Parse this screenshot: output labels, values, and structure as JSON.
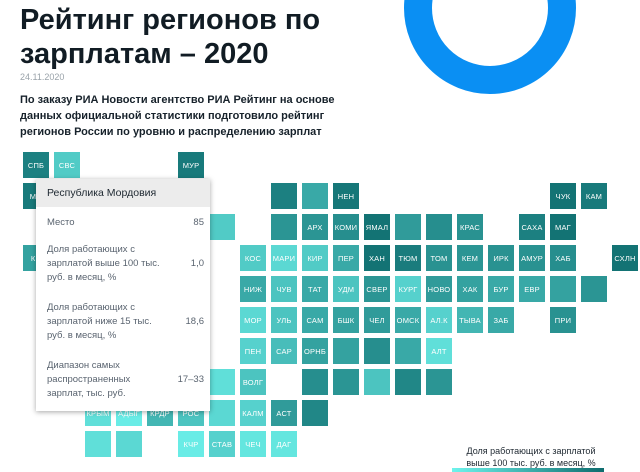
{
  "article": {
    "title": "Рейтинг регионов по зарплатам – 2020",
    "date": "24.11.2020",
    "lead": "По заказу РИА Новости агентство РИА Рейтинг на основе данных официальной статистики подготовило рейтинг регионов России по уровню и распределению зарплат"
  },
  "colors": {
    "accent": "#0a8ff3",
    "scale_low": "#6ef3ec",
    "scale_high": "#0e6c6e"
  },
  "map": {
    "cells": [
      {
        "label": "СПБ",
        "level": 0.85
      },
      {
        "label": "СВС",
        "level": 0.3
      },
      {
        "label": "МУР",
        "level": 0.9
      },
      {
        "label": "МО",
        "level": 0.9
      },
      {
        "label": "НЕН",
        "level": 0.92
      },
      {
        "label": "ЧУК",
        "level": 0.95
      },
      {
        "label": "КАМ",
        "level": 0.9
      },
      {
        "label": "АРХ",
        "level": 0.7
      },
      {
        "label": "КОМИ",
        "level": 0.75
      },
      {
        "label": "ЯМАЛ",
        "level": 0.95
      },
      {
        "label": "КРАС",
        "level": 0.72
      },
      {
        "label": "САХА",
        "level": 0.85
      },
      {
        "label": "МАГ",
        "level": 0.95
      },
      {
        "label": "КН",
        "level": 0.6
      },
      {
        "label": "КОС",
        "level": 0.3
      },
      {
        "label": "МАРИ",
        "level": 0.2
      },
      {
        "label": "КИР",
        "level": 0.3
      },
      {
        "label": "ПЕР",
        "level": 0.55
      },
      {
        "label": "ХАН",
        "level": 0.95
      },
      {
        "label": "ТЮМ",
        "level": 0.88
      },
      {
        "label": "ТОМ",
        "level": 0.72
      },
      {
        "label": "КЕМ",
        "level": 0.7
      },
      {
        "label": "ИРК",
        "level": 0.72
      },
      {
        "label": "АМУР",
        "level": 0.72
      },
      {
        "label": "ХАБ",
        "level": 0.75
      },
      {
        "label": "СХЛН",
        "level": 0.95
      },
      {
        "label": "НИЖ",
        "level": 0.55
      },
      {
        "label": "ЧУВ",
        "level": 0.35
      },
      {
        "label": "ТАТ",
        "level": 0.55
      },
      {
        "label": "УДМ",
        "level": 0.35
      },
      {
        "label": "СВЕР",
        "level": 0.7
      },
      {
        "label": "КУРГ",
        "level": 0.25
      },
      {
        "label": "НОВО",
        "level": 0.65
      },
      {
        "label": "ХАК",
        "level": 0.6
      },
      {
        "label": "БУР",
        "level": 0.55
      },
      {
        "label": "ЕВР",
        "level": 0.55
      },
      {
        "label": "МОР",
        "level": 0.2
      },
      {
        "label": "УЛЬ",
        "level": 0.35
      },
      {
        "label": "САМ",
        "level": 0.55
      },
      {
        "label": "БШК",
        "level": 0.6
      },
      {
        "label": "ЧЕЛ",
        "level": 0.65
      },
      {
        "label": "ОМСК",
        "level": 0.55
      },
      {
        "label": "АЛ.К",
        "level": 0.25
      },
      {
        "label": "ТЫВА",
        "level": 0.45
      },
      {
        "label": "ЗАБ",
        "level": 0.55
      },
      {
        "label": "ПРИ",
        "level": 0.72
      },
      {
        "label": "ПЕН",
        "level": 0.25
      },
      {
        "label": "САР",
        "level": 0.4
      },
      {
        "label": "ОРНБ",
        "level": 0.6
      },
      {
        "label": "АЛТ",
        "level": 0.15
      },
      {
        "label": "ВОЛГ",
        "level": 0.35
      },
      {
        "label": "КРЫМ",
        "level": 0.15
      },
      {
        "label": "АДЫГ",
        "level": 0.05
      },
      {
        "label": "КРДР",
        "level": 0.45
      },
      {
        "label": "РОС",
        "level": 0.35
      },
      {
        "label": "КАЛМ",
        "level": 0.25
      },
      {
        "label": "АСТ",
        "level": 0.65
      },
      {
        "label": "КЧР",
        "level": 0.05
      },
      {
        "label": "СТАВ",
        "level": 0.25
      },
      {
        "label": "ЧЕЧ",
        "level": 0.1
      },
      {
        "label": "ДАГ",
        "level": 0.1
      }
    ],
    "placeholders": [
      {
        "level": 0.5
      },
      {
        "level": 0.15
      },
      {
        "level": 0.55
      },
      {
        "level": 0.7
      },
      {
        "level": 0.3
      },
      {
        "level": 0.05
      },
      {
        "level": 0.65
      },
      {
        "level": 0.75
      },
      {
        "level": 0.7
      },
      {
        "level": 0.6
      },
      {
        "level": 0.75
      },
      {
        "level": 0.55
      },
      {
        "level": 0.6
      },
      {
        "level": 0.35
      },
      {
        "level": 0.15
      },
      {
        "level": 0.2
      },
      {
        "level": 0.8
      },
      {
        "level": 0.75
      },
      {
        "level": 0.7
      },
      {
        "level": 0.85
      },
      {
        "level": 0.2
      },
      {
        "level": 0.3
      },
      {
        "level": 0.2
      },
      {
        "level": 0.8
      },
      {
        "level": 0.7
      },
      {
        "level": 0.1
      },
      {
        "level": 0.25
      },
      {
        "level": 0.15
      },
      {
        "level": 0.2
      }
    ]
  },
  "tooltip": {
    "region": "Республика Мордовия",
    "rows": [
      {
        "label": "Место",
        "value": "85"
      },
      {
        "label": "Доля работающих с зарплатой выше 100 тыс. руб. в месяц, %",
        "value": "1,0"
      },
      {
        "label": "Доля работающих с зарплатой ниже 15 тыс. руб. в месяц, %",
        "value": "18,6"
      },
      {
        "label": "Диапазон самых распространенных зарплат, тыс. руб.",
        "value": "17–33"
      }
    ]
  },
  "legend": {
    "title": "Доля работающих с зарплатой выше 100 тыс. руб. в месяц, %"
  }
}
